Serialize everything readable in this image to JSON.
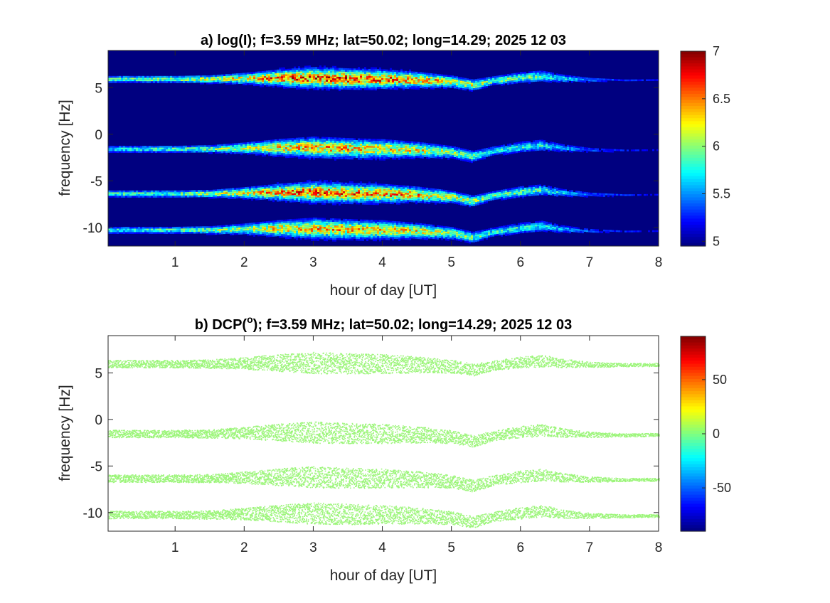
{
  "chart_data": [
    {
      "id": "a",
      "type": "heatmap",
      "title": "a) log(I); f=3.59 MHz;  lat=50.02; long=14.29; 2025 12 03",
      "xlabel": "hour of day [UT]",
      "ylabel": "frequency [Hz]",
      "xlim": [
        0.03,
        8
      ],
      "ylim": [
        -12,
        9
      ],
      "xticks": [
        1,
        2,
        3,
        4,
        5,
        6,
        7,
        8
      ],
      "xtick_labels": [
        "1",
        "2",
        "3",
        "4",
        "5",
        "6",
        "7",
        "8"
      ],
      "yticks": [
        5,
        0,
        -5,
        -10
      ],
      "ytick_labels": [
        "5",
        "0",
        "-5",
        "-10"
      ],
      "background_value": 4.95,
      "colorbar": {
        "colormap": "jet",
        "range": [
          4.95,
          7
        ],
        "ticks": [
          7,
          6.5,
          6,
          5.5,
          5
        ],
        "tick_labels": [
          "7",
          "6.5",
          "6",
          "5.5",
          "5"
        ]
      },
      "bands": [
        {
          "center_hz": 6.0,
          "peak_intensity": 6.9
        },
        {
          "center_hz": -1.5,
          "peak_intensity": 6.6
        },
        {
          "center_hz": -6.3,
          "peak_intensity": 6.8
        },
        {
          "center_hz": -10.2,
          "peak_intensity": 6.6
        }
      ]
    },
    {
      "id": "b",
      "type": "scatter",
      "title_main": "b) DCP(",
      "title_superscript": "o",
      "title_rest": "); f=3.59 MHz;  lat=50.02; long=14.29; 2025 12 03",
      "xlabel": "hour of day [UT]",
      "ylabel": "frequency [Hz]",
      "xlim": [
        0.03,
        8
      ],
      "ylim": [
        -12,
        9
      ],
      "xticks": [
        1,
        2,
        3,
        4,
        5,
        6,
        7,
        8
      ],
      "xtick_labels": [
        "1",
        "2",
        "3",
        "4",
        "5",
        "6",
        "7",
        "8"
      ],
      "yticks": [
        5,
        0,
        -5,
        -10
      ],
      "ytick_labels": [
        "5",
        "0",
        "-5",
        "-10"
      ],
      "point_value": 0,
      "point_color": "#9cf57a",
      "colorbar": {
        "colormap": "jet",
        "range": [
          -90,
          90
        ],
        "ticks": [
          50,
          0,
          -50
        ],
        "tick_labels": [
          "50",
          "0",
          "-50"
        ]
      }
    }
  ],
  "colors": {
    "background_a": "#00008f",
    "dcp_points": "#9cf57a",
    "axis": "#262626"
  },
  "band_track": {
    "hours": [
      0.03,
      0.5,
      1.0,
      1.5,
      2.0,
      2.5,
      3.0,
      3.5,
      4.0,
      4.5,
      5.0,
      5.3,
      5.6,
      6.0,
      6.3,
      6.6,
      7.0,
      7.5,
      8.0
    ],
    "offset_hz": [
      0,
      0,
      0,
      0,
      0.1,
      0.15,
      0.15,
      0.05,
      0,
      -0.1,
      -0.35,
      -0.8,
      -0.2,
      0.2,
      0.4,
      0.1,
      -0.1,
      -0.15,
      -0.1
    ],
    "halfwidth_hz": [
      0.35,
      0.35,
      0.35,
      0.4,
      0.55,
      0.8,
      1.0,
      0.95,
      0.9,
      0.75,
      0.6,
      0.55,
      0.45,
      0.55,
      0.55,
      0.4,
      0.25,
      0.15,
      0.15
    ],
    "strength": [
      0.55,
      0.6,
      0.65,
      0.7,
      0.8,
      0.95,
      1.0,
      1.0,
      0.95,
      0.9,
      0.75,
      0.7,
      0.6,
      0.6,
      0.55,
      0.45,
      0.3,
      0.2,
      0.15
    ]
  }
}
